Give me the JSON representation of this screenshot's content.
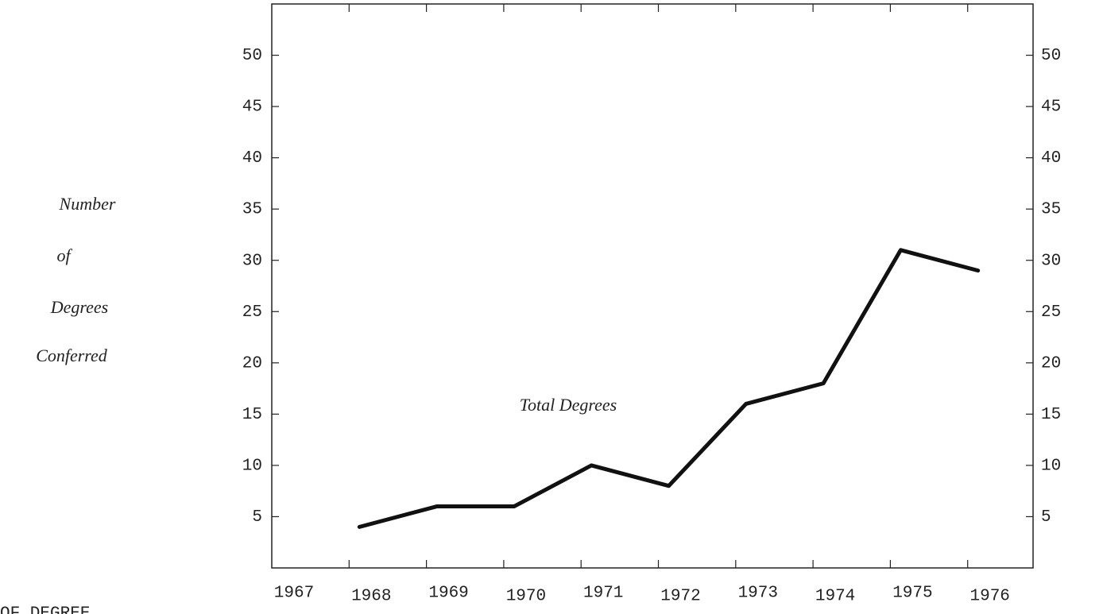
{
  "chart_data": {
    "type": "line",
    "y_label": [
      "Number",
      "of",
      "Degrees",
      "Conferred"
    ],
    "annotation": "Total Degrees",
    "footer": "OF DEGREE",
    "categories": [
      "1967",
      "1968",
      "1969",
      "1970",
      "1971",
      "1972",
      "1973",
      "1974",
      "1975",
      "1976"
    ],
    "series": [
      {
        "name": "Total Degrees",
        "color": "#111111",
        "values": [
          null,
          4,
          6,
          6,
          10,
          8,
          16,
          18,
          31,
          29
        ]
      }
    ],
    "ylim": [
      0,
      55
    ],
    "yticks": [
      5,
      10,
      15,
      20,
      25,
      30,
      35,
      40,
      45,
      50
    ],
    "y2lim": [
      0,
      55
    ],
    "y2ticks": [
      5,
      10,
      15,
      20,
      25,
      30,
      35,
      40,
      45,
      50
    ],
    "grid": false
  }
}
